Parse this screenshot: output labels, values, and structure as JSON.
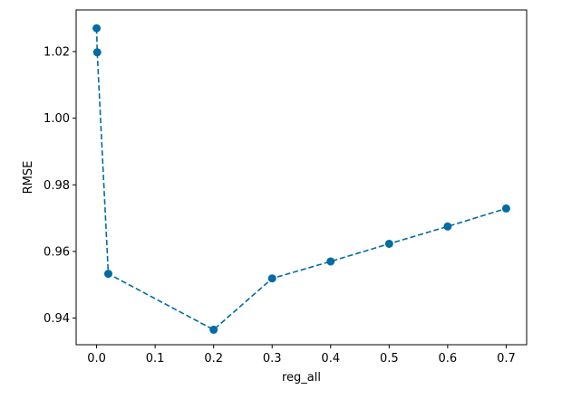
{
  "chart_data": {
    "type": "line",
    "title": "",
    "xlabel": "reg_all",
    "ylabel": "RMSE",
    "xlim": [
      -0.035,
      0.735
    ],
    "ylim": [
      0.932,
      1.0325
    ],
    "xticks": [
      0.0,
      0.1,
      0.2,
      0.3,
      0.4,
      0.5,
      0.6,
      0.7
    ],
    "xtick_labels": [
      "0.0",
      "0.1",
      "0.2",
      "0.3",
      "0.4",
      "0.5",
      "0.6",
      "0.7"
    ],
    "yticks": [
      0.94,
      0.96,
      0.98,
      1.0,
      1.02
    ],
    "ytick_labels": [
      "0.94",
      "0.96",
      "0.98",
      "1.00",
      "1.02"
    ],
    "grid": false,
    "line_style": "dashed",
    "marker": "circle",
    "color": "#006ba4",
    "series": [
      {
        "x": [
          0.0,
          0.001,
          0.02,
          0.2,
          0.3,
          0.4,
          0.5,
          0.6,
          0.7
        ],
        "y": [
          1.027,
          1.0198,
          0.9533,
          0.9365,
          0.9519,
          0.957,
          0.9623,
          0.9675,
          0.9729
        ]
      }
    ]
  }
}
